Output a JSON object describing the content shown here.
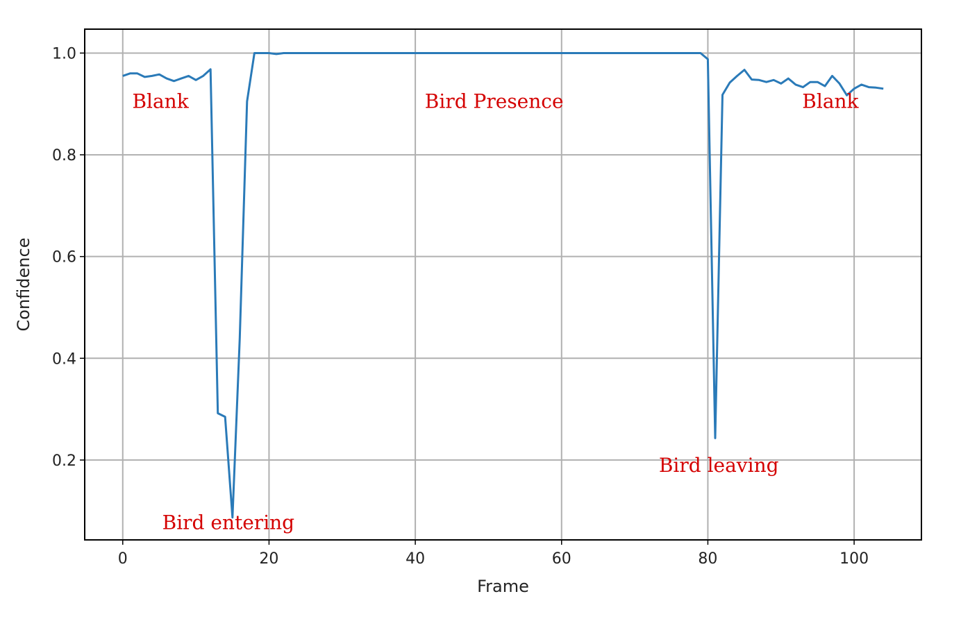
{
  "chart_data": {
    "type": "line",
    "xlabel": "Frame",
    "ylabel": "Confidence",
    "xlim": [
      -5.2,
      109.2
    ],
    "ylim": [
      0.043,
      1.047
    ],
    "x_ticks": [
      0,
      20,
      40,
      60,
      80,
      100
    ],
    "x_tick_labels": [
      "0",
      "20",
      "40",
      "60",
      "80",
      "100"
    ],
    "y_ticks": [
      0.2,
      0.4,
      0.6,
      0.8,
      1.0
    ],
    "y_tick_labels": [
      "0.2",
      "0.4",
      "0.6",
      "0.8",
      "1.0"
    ],
    "grid": true,
    "line_color": "#2a7ab8",
    "series": [
      {
        "x": [
          0,
          1,
          2,
          3,
          4,
          5,
          6,
          7,
          8,
          9,
          10,
          11,
          12,
          13,
          14,
          15,
          16,
          17,
          18,
          19,
          20,
          21,
          22,
          23,
          24,
          25,
          26,
          27,
          28,
          29,
          30,
          31,
          32,
          33,
          34,
          35,
          36,
          37,
          38,
          39,
          40,
          41,
          42,
          43,
          44,
          45,
          46,
          47,
          48,
          49,
          50,
          51,
          52,
          53,
          54,
          55,
          56,
          57,
          58,
          59,
          60,
          61,
          62,
          63,
          64,
          65,
          66,
          67,
          68,
          69,
          70,
          71,
          72,
          73,
          74,
          75,
          76,
          77,
          78,
          79,
          80,
          81,
          82,
          83,
          84,
          85,
          86,
          87,
          88,
          89,
          90,
          91,
          92,
          93,
          94,
          95,
          96,
          97,
          98,
          99,
          100,
          101,
          102,
          103,
          104
        ],
        "values": [
          0.955,
          0.96,
          0.96,
          0.953,
          0.955,
          0.958,
          0.95,
          0.945,
          0.95,
          0.955,
          0.947,
          0.955,
          0.968,
          0.292,
          0.285,
          0.087,
          0.44,
          0.905,
          1.0,
          1.0,
          1.0,
          0.998,
          1.0,
          1.0,
          1.0,
          1.0,
          1.0,
          1.0,
          1.0,
          1.0,
          1.0,
          1.0,
          1.0,
          1.0,
          1.0,
          1.0,
          1.0,
          1.0,
          1.0,
          1.0,
          1.0,
          1.0,
          1.0,
          1.0,
          1.0,
          1.0,
          1.0,
          1.0,
          1.0,
          1.0,
          1.0,
          1.0,
          1.0,
          1.0,
          1.0,
          1.0,
          1.0,
          1.0,
          1.0,
          1.0,
          1.0,
          1.0,
          1.0,
          1.0,
          1.0,
          1.0,
          1.0,
          1.0,
          1.0,
          1.0,
          1.0,
          1.0,
          1.0,
          1.0,
          1.0,
          1.0,
          1.0,
          1.0,
          1.0,
          1.0,
          0.988,
          0.243,
          0.918,
          0.942,
          0.955,
          0.967,
          0.948,
          0.947,
          0.943,
          0.947,
          0.94,
          0.95,
          0.938,
          0.933,
          0.943,
          0.943,
          0.935,
          0.955,
          0.94,
          0.917,
          0.93,
          0.938,
          0.933,
          0.932,
          0.93
        ]
      }
    ],
    "annotations": [
      {
        "text": "Blank",
        "x": 1.3,
        "y": 0.892,
        "color": "#d40000"
      },
      {
        "text": "Bird Presence",
        "x": 41.3,
        "y": 0.892,
        "color": "#d40000"
      },
      {
        "text": "Blank",
        "x": 92.9,
        "y": 0.892,
        "color": "#d40000"
      },
      {
        "text": "Bird leaving",
        "x": 73.3,
        "y": 0.177,
        "color": "#d40000"
      },
      {
        "text": "Bird entering",
        "x": 5.4,
        "y": 0.064,
        "color": "#d40000"
      }
    ]
  }
}
